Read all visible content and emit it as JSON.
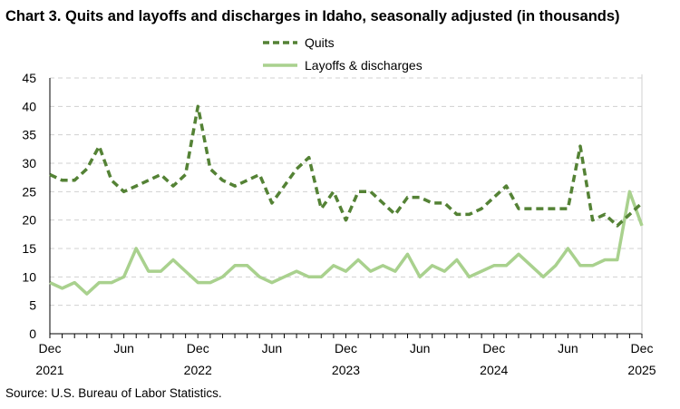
{
  "chart_data": {
    "type": "line",
    "title": "Chart 3. Quits and layoffs and discharges in Idaho, seasonally adjusted (in thousands)",
    "source": "Source: U.S. Bureau of Labor Statistics.",
    "xlabel": "",
    "ylabel": "",
    "ylim": [
      0,
      45
    ],
    "yticks": [
      0,
      5,
      10,
      15,
      20,
      25,
      30,
      35,
      40,
      45
    ],
    "grid": true,
    "legend_placement": "top-center",
    "x_range": [
      "Dec 2021",
      "Dec 2025"
    ],
    "x_tick_labels": [
      {
        "month": "Dec",
        "year": "2021"
      },
      {
        "month": "Jun",
        "year": ""
      },
      {
        "month": "Dec",
        "year": "2022"
      },
      {
        "month": "Jun",
        "year": ""
      },
      {
        "month": "Dec",
        "year": "2023"
      },
      {
        "month": "Jun",
        "year": ""
      },
      {
        "month": "Dec",
        "year": "2024"
      },
      {
        "month": "Jun",
        "year": ""
      },
      {
        "month": "Dec",
        "year": "2025"
      }
    ],
    "series": [
      {
        "name": "Quits",
        "color": "#548235",
        "style": "dashed",
        "values": [
          28,
          27,
          27,
          29,
          33,
          27,
          25,
          26,
          27,
          28,
          26,
          28,
          40,
          29,
          27,
          26,
          27,
          28,
          23,
          26,
          29,
          31,
          22,
          25,
          20,
          25,
          25,
          23,
          21,
          24,
          24,
          23,
          23,
          21,
          21,
          22,
          24,
          26,
          22,
          22,
          22,
          22,
          22,
          33,
          20,
          21,
          19,
          21,
          23
        ]
      },
      {
        "name": "Layoffs & discharges",
        "color": "#A9D18E",
        "style": "solid",
        "values": [
          9,
          8,
          9,
          7,
          9,
          9,
          10,
          15,
          11,
          11,
          13,
          11,
          9,
          9,
          10,
          12,
          12,
          10,
          9,
          10,
          11,
          10,
          10,
          12,
          11,
          13,
          11,
          12,
          11,
          14,
          10,
          12,
          11,
          13,
          10,
          11,
          12,
          12,
          14,
          12,
          10,
          12,
          15,
          12,
          12,
          13,
          13,
          25,
          19
        ]
      }
    ]
  }
}
